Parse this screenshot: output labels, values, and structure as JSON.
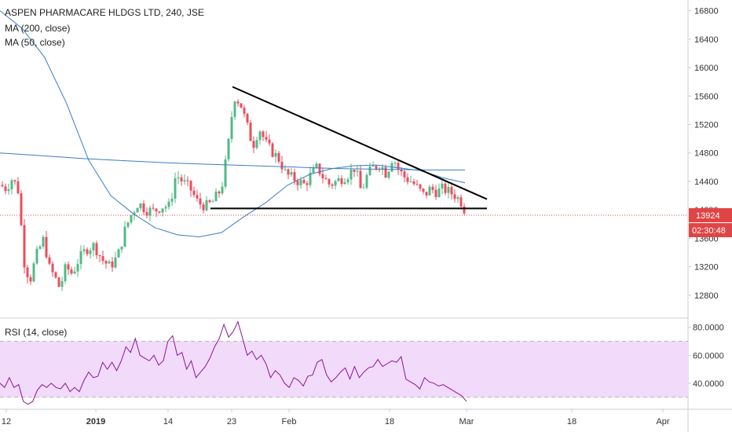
{
  "legend": {
    "title": "ASPEN PHARMACARE HLDGS LTD, 240, JSE",
    "ma200": "MA (200, close)",
    "ma50": "MA (50, close)",
    "rsi": "RSI (14, close)"
  },
  "colors": {
    "up": "#53b987",
    "down": "#eb4d5c",
    "ma": "#3b7dc4",
    "rsi": "#8e1599",
    "rsi_band": "#f1dafa",
    "price_line": "#e04545",
    "time_tag": "#e04545",
    "trendline": "#000000"
  },
  "chart_data": [
    {
      "type": "candlestick",
      "title": "ASPEN PHARMACARE HLDGS LTD, 240, JSE",
      "y_ticks": [
        12800,
        13200,
        13600,
        14000,
        14400,
        14800,
        15200,
        15600,
        16000,
        16400,
        16800
      ],
      "y_tick_labels": [
        "12800",
        "13200",
        "13600",
        "14000",
        "14400",
        "14800",
        "15200",
        "15600",
        "16000",
        "16400",
        "16800"
      ],
      "ylim": [
        12500,
        16950
      ],
      "last_price": 13924,
      "last_price_label": "13924",
      "countdown_label": "02:30:48",
      "x_labels": [
        "12",
        "2019",
        "14",
        "23",
        "Feb",
        "18",
        "Mar",
        "18",
        "Apr"
      ],
      "grid": false,
      "series": [
        {
          "name": "MA (200, close)",
          "values": [
            14800,
            14760,
            14720,
            14690,
            14660,
            14640,
            14620,
            14600,
            14580,
            14570,
            14560,
            14560
          ]
        },
        {
          "name": "MA (50, close)",
          "values": [
            16800,
            16550,
            16150,
            15500,
            14700,
            14200,
            13950,
            13750,
            13650,
            13620,
            13680,
            13900,
            14100,
            14350,
            14500,
            14580,
            14620,
            14630,
            14590,
            14550,
            14450,
            14380
          ]
        }
      ],
      "ohlc_note": "approximate 4-hour candles",
      "trendlines": [
        {
          "from": [
            "23",
            15730
          ],
          "to": [
            "Mar",
            14150
          ]
        },
        {
          "from": [
            "23",
            14020
          ],
          "to": [
            "Mar",
            14020
          ]
        }
      ]
    },
    {
      "type": "line",
      "title": "RSI (14, close)",
      "y_ticks": [
        40,
        60,
        80
      ],
      "y_tick_labels": [
        "40.0000",
        "60.0000",
        "80.0000"
      ],
      "ylim": [
        22,
        86
      ],
      "band": [
        30,
        70
      ],
      "values": [
        40,
        37,
        44,
        37,
        39,
        27,
        25,
        27,
        35,
        39,
        37,
        40,
        37,
        36,
        40,
        34,
        37,
        34,
        42,
        48,
        44,
        45,
        55,
        50,
        55,
        49,
        56,
        66,
        62,
        72,
        60,
        58,
        56,
        60,
        53,
        56,
        70,
        74,
        60,
        62,
        50,
        56,
        44,
        48,
        52,
        58,
        66,
        72,
        82,
        73,
        77,
        84,
        72,
        60,
        63,
        57,
        60,
        54,
        44,
        49,
        46,
        40,
        37,
        44,
        42,
        38,
        45,
        46,
        55,
        57,
        46,
        41,
        44,
        48,
        51,
        43,
        52,
        44,
        48,
        51,
        52,
        57,
        52,
        54,
        56,
        55,
        59,
        43,
        41,
        39,
        36,
        44,
        41,
        40,
        38,
        39,
        37,
        35,
        33,
        31,
        27
      ]
    }
  ]
}
